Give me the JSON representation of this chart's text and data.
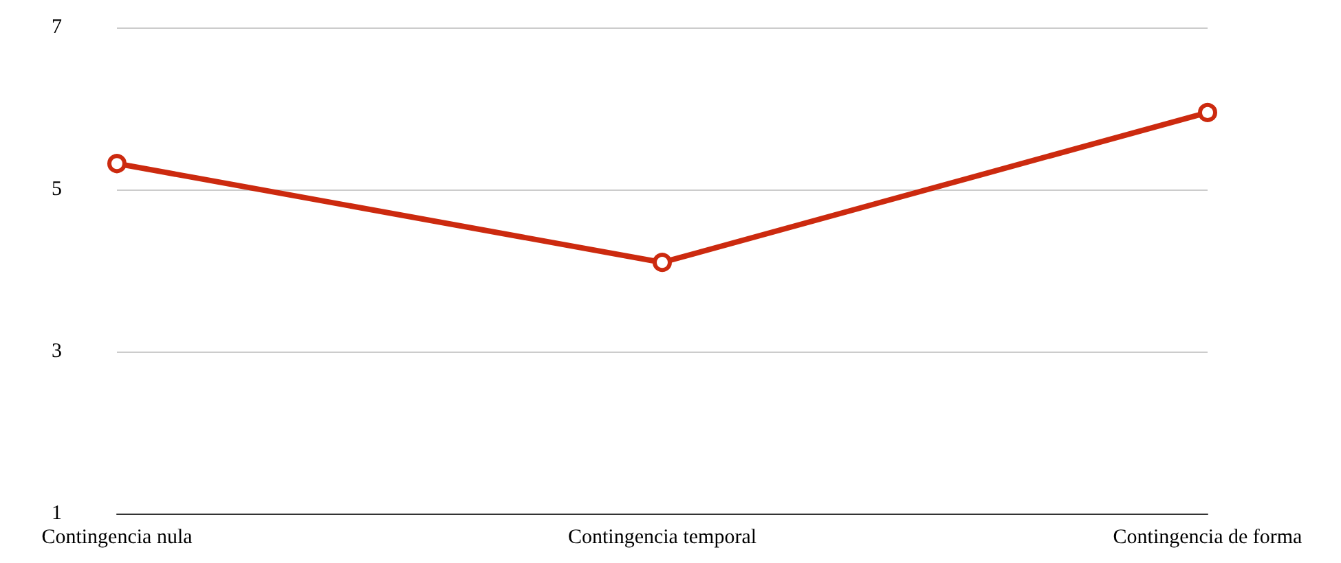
{
  "chart_data": {
    "type": "line",
    "categories": [
      "Contingencia nula",
      "Contingencia temporal",
      "Contingencia de forma"
    ],
    "series": [
      {
        "color": "#cc2a0f",
        "values": [
          5.32,
          4.1,
          5.95
        ]
      }
    ],
    "ylim": [
      1,
      7
    ],
    "yticks": [
      1,
      3,
      5,
      7
    ],
    "grid": "y",
    "marker": "circle",
    "line_style": "solid"
  }
}
